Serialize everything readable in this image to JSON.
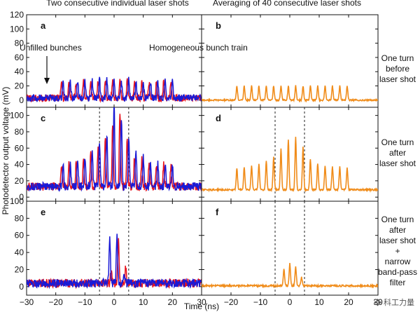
{
  "titles": {
    "left": "Two consecutive individual laser shots",
    "right": "Averaging of 40 consecutive laser shots"
  },
  "ylabel": "Photodetector output voltage (mV)",
  "xlabel": "Time (ns)",
  "side_labels": [
    [
      "One turn",
      "before",
      "laser shot"
    ],
    [
      "One turn",
      "after",
      "laser shot"
    ],
    [
      "One turn",
      "after",
      "laser shot",
      "+",
      "narrow",
      "band-pass",
      "filter"
    ]
  ],
  "annotations": {
    "unfilled": "Unfilled bunches",
    "homogeneous": "Homogeneous bunch train"
  },
  "watermark": "科工力量",
  "colors": {
    "shot1": "#e8141e",
    "shot2": "#1a1ad6",
    "average": "#f08c1a"
  },
  "chart_data": {
    "type": "line",
    "x_range": [
      -30,
      30
    ],
    "x_ticks": [
      -30,
      -20,
      -10,
      0,
      10,
      20,
      30
    ],
    "x_tick_labels": [
      "−30",
      "−20",
      "−10",
      "0",
      "10",
      "20",
      "30"
    ],
    "bunch_spacing_ns": 2.5,
    "dashed_markers_ns": [
      -5,
      5
    ],
    "panels": [
      {
        "letter": "a",
        "row": 0,
        "col": 0,
        "ylim": [
          -10,
          120
        ],
        "yticks": [
          0,
          20,
          40,
          60,
          80,
          100,
          120
        ],
        "dashed": false,
        "series": [
          {
            "name": "shot 1",
            "color_key": "shot1",
            "baseline": 3,
            "noise": 5,
            "peaks": [
              [
                -18,
                22
              ],
              [
                -15.5,
                23
              ],
              [
                -13,
                23
              ],
              [
                -10.5,
                24
              ],
              [
                -8,
                24
              ],
              [
                -5.5,
                24
              ],
              [
                -3,
                24
              ],
              [
                -0.5,
                24
              ],
              [
                2,
                24
              ],
              [
                4.5,
                24
              ],
              [
                7,
                23
              ],
              [
                9.5,
                23
              ],
              [
                12,
                23
              ],
              [
                14.5,
                22
              ],
              [
                17,
                22
              ],
              [
                19.5,
                22
              ]
            ]
          },
          {
            "name": "shot 2",
            "color_key": "shot2",
            "baseline": 3,
            "noise": 5,
            "peaks": [
              [
                -17.5,
                23
              ],
              [
                -15,
                24
              ],
              [
                -12.5,
                24
              ],
              [
                -10,
                25
              ],
              [
                -7.5,
                25
              ],
              [
                -5,
                25
              ],
              [
                -2.5,
                25
              ],
              [
                0,
                25
              ],
              [
                2.5,
                25
              ],
              [
                5,
                25
              ],
              [
                7.5,
                24
              ],
              [
                10,
                24
              ],
              [
                12.5,
                24
              ],
              [
                15,
                23
              ],
              [
                17.5,
                23
              ],
              [
                20,
                23
              ]
            ]
          }
        ]
      },
      {
        "letter": "b",
        "row": 0,
        "col": 1,
        "ylim": [
          -10,
          120
        ],
        "yticks": [
          0,
          20,
          40,
          60,
          80,
          100,
          120
        ],
        "dashed": false,
        "series": [
          {
            "name": "average",
            "color_key": "average",
            "baseline": 0,
            "noise": 1,
            "peaks": [
              [
                -18,
                20
              ],
              [
                -15.5,
                20
              ],
              [
                -13,
                20
              ],
              [
                -10.5,
                20
              ],
              [
                -8,
                20
              ],
              [
                -5.5,
                20
              ],
              [
                -3,
                20
              ],
              [
                -0.5,
                20
              ],
              [
                2,
                20
              ],
              [
                4.5,
                20
              ],
              [
                7,
                20
              ],
              [
                9.5,
                20
              ],
              [
                12,
                20
              ],
              [
                14.5,
                20
              ],
              [
                17,
                20
              ],
              [
                19.5,
                20
              ]
            ]
          }
        ]
      },
      {
        "letter": "c",
        "row": 1,
        "col": 0,
        "ylim": [
          -5,
          110
        ],
        "yticks": [
          0,
          20,
          40,
          60,
          80,
          100
        ],
        "dashed": true,
        "series": [
          {
            "name": "shot 1",
            "color_key": "shot1",
            "baseline": 13,
            "noise": 5,
            "peaks": [
              [
                -18,
                25
              ],
              [
                -15.5,
                26
              ],
              [
                -13,
                30
              ],
              [
                -10.5,
                34
              ],
              [
                -8,
                42
              ],
              [
                -5.5,
                48
              ],
              [
                -3,
                62
              ],
              [
                -0.5,
                76
              ],
              [
                2,
                92
              ],
              [
                4.5,
                58
              ],
              [
                7,
                38
              ],
              [
                9.5,
                33
              ],
              [
                12,
                30
              ],
              [
                14.5,
                28
              ],
              [
                17,
                27
              ],
              [
                19.5,
                26
              ]
            ]
          },
          {
            "name": "shot 2",
            "color_key": "shot2",
            "baseline": 13,
            "noise": 5,
            "peaks": [
              [
                -17.5,
                26
              ],
              [
                -15,
                28
              ],
              [
                -12.5,
                33
              ],
              [
                -10,
                38
              ],
              [
                -7.5,
                46
              ],
              [
                -5,
                55
              ],
              [
                -2.5,
                65
              ],
              [
                0,
                103
              ],
              [
                2.5,
                86
              ],
              [
                5,
                60
              ],
              [
                7.5,
                42
              ],
              [
                10,
                35
              ],
              [
                12.5,
                31
              ],
              [
                15,
                29
              ],
              [
                17.5,
                27
              ],
              [
                20,
                26
              ]
            ]
          }
        ]
      },
      {
        "letter": "d",
        "row": 1,
        "col": 1,
        "ylim": [
          -5,
          110
        ],
        "yticks": [
          0,
          20,
          40,
          60,
          80,
          100
        ],
        "dashed": true,
        "series": [
          {
            "name": "average",
            "color_key": "average",
            "baseline": 9,
            "noise": 1,
            "peaks": [
              [
                -18,
                27
              ],
              [
                -15.5,
                28
              ],
              [
                -13,
                30
              ],
              [
                -10.5,
                32
              ],
              [
                -8,
                35
              ],
              [
                -5.5,
                40
              ],
              [
                -3,
                50
              ],
              [
                -0.5,
                62
              ],
              [
                2,
                65
              ],
              [
                4.5,
                52
              ],
              [
                7,
                38
              ],
              [
                9.5,
                33
              ],
              [
                12,
                30
              ],
              [
                14.5,
                29
              ],
              [
                17,
                28
              ],
              [
                19.5,
                27
              ]
            ]
          }
        ]
      },
      {
        "letter": "e",
        "row": 2,
        "col": 0,
        "ylim": [
          -10,
          100
        ],
        "yticks": [
          0,
          20,
          40,
          60,
          80,
          100
        ],
        "dashed": true,
        "series": [
          {
            "name": "shot 1",
            "color_key": "shot1",
            "baseline": 4,
            "noise": 5,
            "peaks": [
              [
                -1,
                15
              ],
              [
                1.5,
                52
              ],
              [
                4,
                20
              ]
            ]
          },
          {
            "name": "shot 2",
            "color_key": "shot2",
            "baseline": 4,
            "noise": 5,
            "peaks": [
              [
                -1.5,
                55
              ],
              [
                1,
                57
              ],
              [
                3.5,
                12
              ]
            ]
          }
        ]
      },
      {
        "letter": "f",
        "row": 2,
        "col": 1,
        "ylim": [
          -10,
          100
        ],
        "yticks": [
          0,
          20,
          40,
          60,
          80,
          100
        ],
        "dashed": true,
        "series": [
          {
            "name": "average",
            "color_key": "average",
            "baseline": 1,
            "noise": 1,
            "peaks": [
              [
                -2,
                20
              ],
              [
                0,
                26
              ],
              [
                2,
                22
              ],
              [
                4,
                10
              ]
            ]
          }
        ]
      }
    ]
  }
}
